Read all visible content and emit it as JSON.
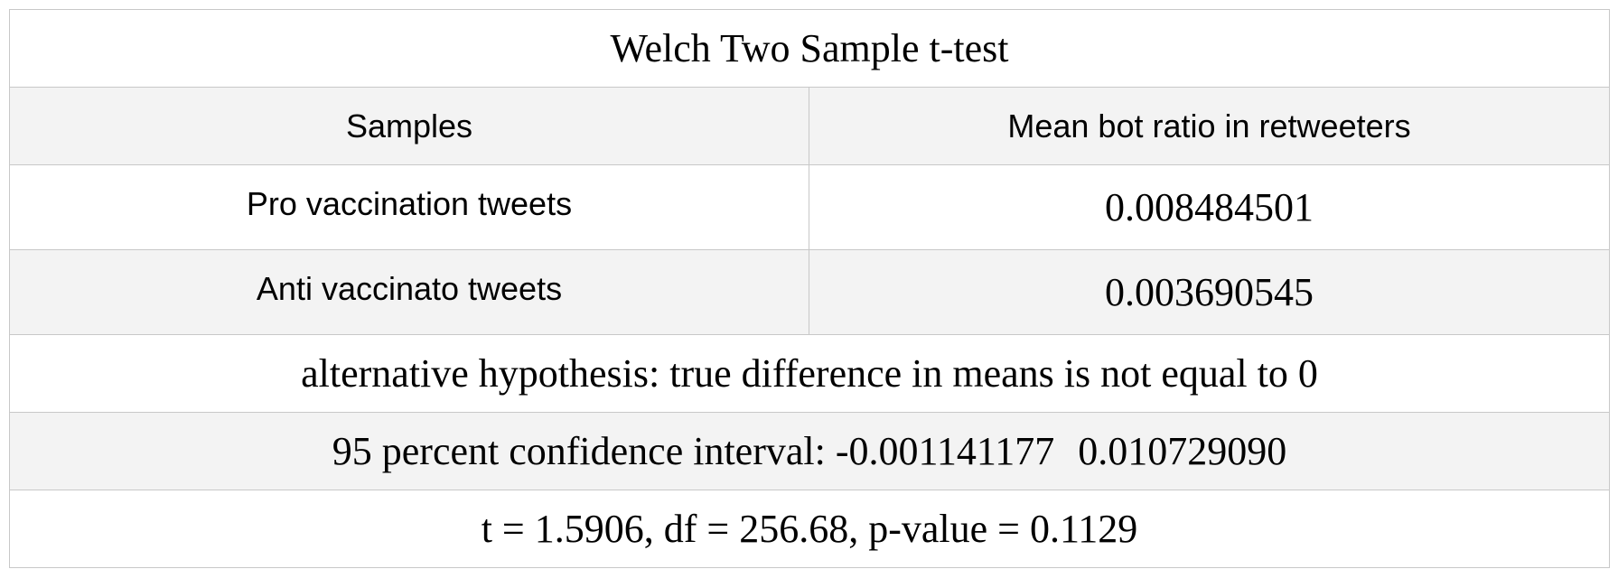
{
  "table": {
    "title": "Welch Two Sample t-test",
    "header": {
      "samples": "Samples",
      "mean": "Mean bot ratio in retweeters"
    },
    "rows": [
      {
        "sample": "Pro vaccination tweets",
        "mean": "0.008484501"
      },
      {
        "sample": "Anti vaccinato tweets",
        "mean": "0.003690545"
      }
    ],
    "alternative": "alternative hypothesis: true difference in means is not equal to 0",
    "confidence": {
      "label": "95 percent confidence interval:",
      "lower": "-0.001141177",
      "upper": "0.010729090"
    },
    "statistics": "t = 1.5906, df = 256.68, p-value = 0.1129"
  }
}
